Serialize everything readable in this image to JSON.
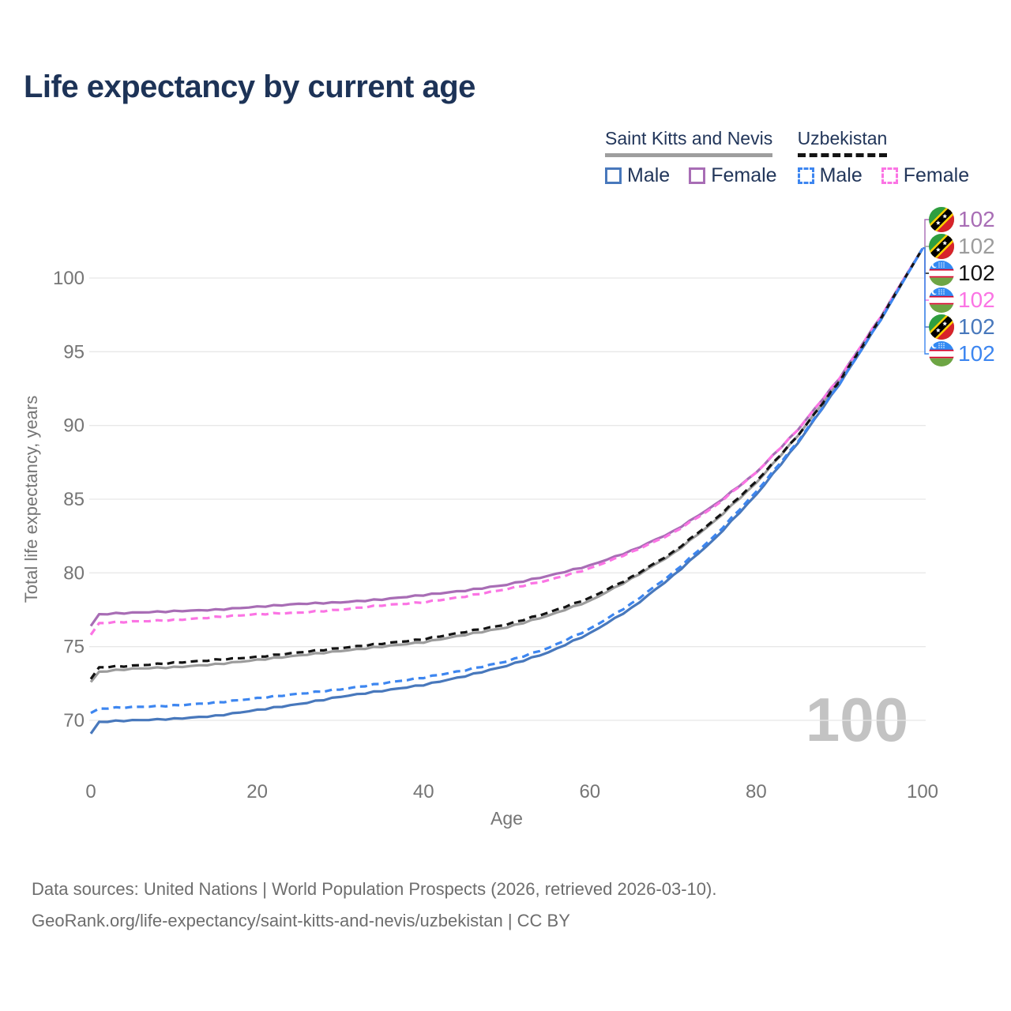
{
  "title": "Life expectancy by current age",
  "legend": {
    "groups": [
      {
        "label": "Saint Kitts and Nevis",
        "line_style": "solid",
        "items": [
          {
            "label": "Male"
          },
          {
            "label": "Female"
          }
        ]
      },
      {
        "label": "Uzbekistan",
        "line_style": "dashed",
        "items": [
          {
            "label": "Male"
          },
          {
            "label": "Female"
          }
        ]
      }
    ]
  },
  "chart_data": {
    "type": "line",
    "title": "Life expectancy by current age",
    "xlabel": "Age",
    "ylabel": "Total life expectancy, years",
    "x_ticks": [
      0,
      20,
      40,
      60,
      80,
      100
    ],
    "y_ticks": [
      70,
      75,
      80,
      85,
      90,
      95,
      100
    ],
    "xlim": [
      0,
      100
    ],
    "ylim": [
      68,
      103
    ],
    "grid": "horizontal",
    "legend_position": "top-right",
    "watermark": "100",
    "x": [
      0,
      1,
      5,
      10,
      15,
      20,
      25,
      30,
      35,
      40,
      45,
      50,
      55,
      60,
      65,
      70,
      75,
      80,
      85,
      90,
      95,
      100
    ],
    "series": [
      {
        "name": "Saint Kitts and Nevis Female",
        "country": "Saint Kitts and Nevis",
        "group": "Female",
        "color": "#a86db5",
        "dash": "solid",
        "flag": "kn",
        "end_value": 102,
        "end_label": "102",
        "values": [
          76.4,
          77.2,
          77.3,
          77.4,
          77.5,
          77.7,
          77.9,
          78.0,
          78.2,
          78.5,
          78.8,
          79.2,
          79.8,
          80.5,
          81.5,
          82.8,
          84.6,
          86.8,
          89.7,
          93.2,
          97.4,
          102
        ]
      },
      {
        "name": "Saint Kitts and Nevis Total",
        "country": "Saint Kitts and Nevis",
        "group": "Total",
        "color": "#9c9c9c",
        "dash": "solid",
        "flag": "kn",
        "end_value": 102,
        "end_label": "102",
        "values": [
          72.6,
          73.3,
          73.5,
          73.6,
          73.8,
          74.1,
          74.4,
          74.7,
          75.0,
          75.3,
          75.8,
          76.3,
          77.1,
          78.1,
          79.6,
          81.3,
          83.5,
          86.1,
          89.3,
          93.0,
          97.3,
          102
        ]
      },
      {
        "name": "Uzbekistan Total",
        "country": "Uzbekistan",
        "group": "Total",
        "color": "#141414",
        "dash": "dashed",
        "flag": "uz",
        "end_value": 102,
        "end_label": "102",
        "values": [
          72.8,
          73.6,
          73.7,
          73.9,
          74.1,
          74.3,
          74.6,
          74.9,
          75.2,
          75.5,
          76.0,
          76.5,
          77.3,
          78.3,
          79.7,
          81.4,
          83.6,
          86.2,
          89.3,
          93.0,
          97.3,
          102
        ]
      },
      {
        "name": "Uzbekistan Female",
        "country": "Uzbekistan",
        "group": "Female",
        "color": "#fb74e4",
        "dash": "dashed",
        "flag": "uz",
        "end_value": 102,
        "end_label": "102",
        "values": [
          75.8,
          76.6,
          76.7,
          76.8,
          77.0,
          77.2,
          77.3,
          77.5,
          77.8,
          78.0,
          78.4,
          78.9,
          79.5,
          80.3,
          81.4,
          82.7,
          84.5,
          86.8,
          89.7,
          93.2,
          97.4,
          102
        ]
      },
      {
        "name": "Saint Kitts and Nevis Male",
        "country": "Saint Kitts and Nevis",
        "group": "Male",
        "color": "#4878bc",
        "dash": "solid",
        "flag": "kn",
        "end_value": 102,
        "end_label": "102",
        "values": [
          69.1,
          69.9,
          70.0,
          70.1,
          70.3,
          70.7,
          71.1,
          71.6,
          72.0,
          72.4,
          73.0,
          73.7,
          74.6,
          75.9,
          77.6,
          79.8,
          82.3,
          85.3,
          88.8,
          92.8,
          97.2,
          102
        ]
      },
      {
        "name": "Uzbekistan Male",
        "country": "Uzbekistan",
        "group": "Male",
        "color": "#3d86f0",
        "dash": "dashed",
        "flag": "uz",
        "end_value": 102,
        "end_label": "102",
        "values": [
          70.5,
          70.8,
          70.9,
          71.0,
          71.2,
          71.5,
          71.8,
          72.1,
          72.5,
          72.9,
          73.4,
          74.0,
          74.9,
          76.2,
          77.9,
          80.0,
          82.5,
          85.5,
          88.9,
          92.8,
          97.2,
          102
        ]
      }
    ]
  },
  "footer": {
    "line1": "Data sources: United Nations | World Population Prospects (2026, retrieved 2026-03-10).",
    "line2": "GeoRank.org/life-expectancy/saint-kitts-and-nevis/uzbekistan | CC BY"
  }
}
